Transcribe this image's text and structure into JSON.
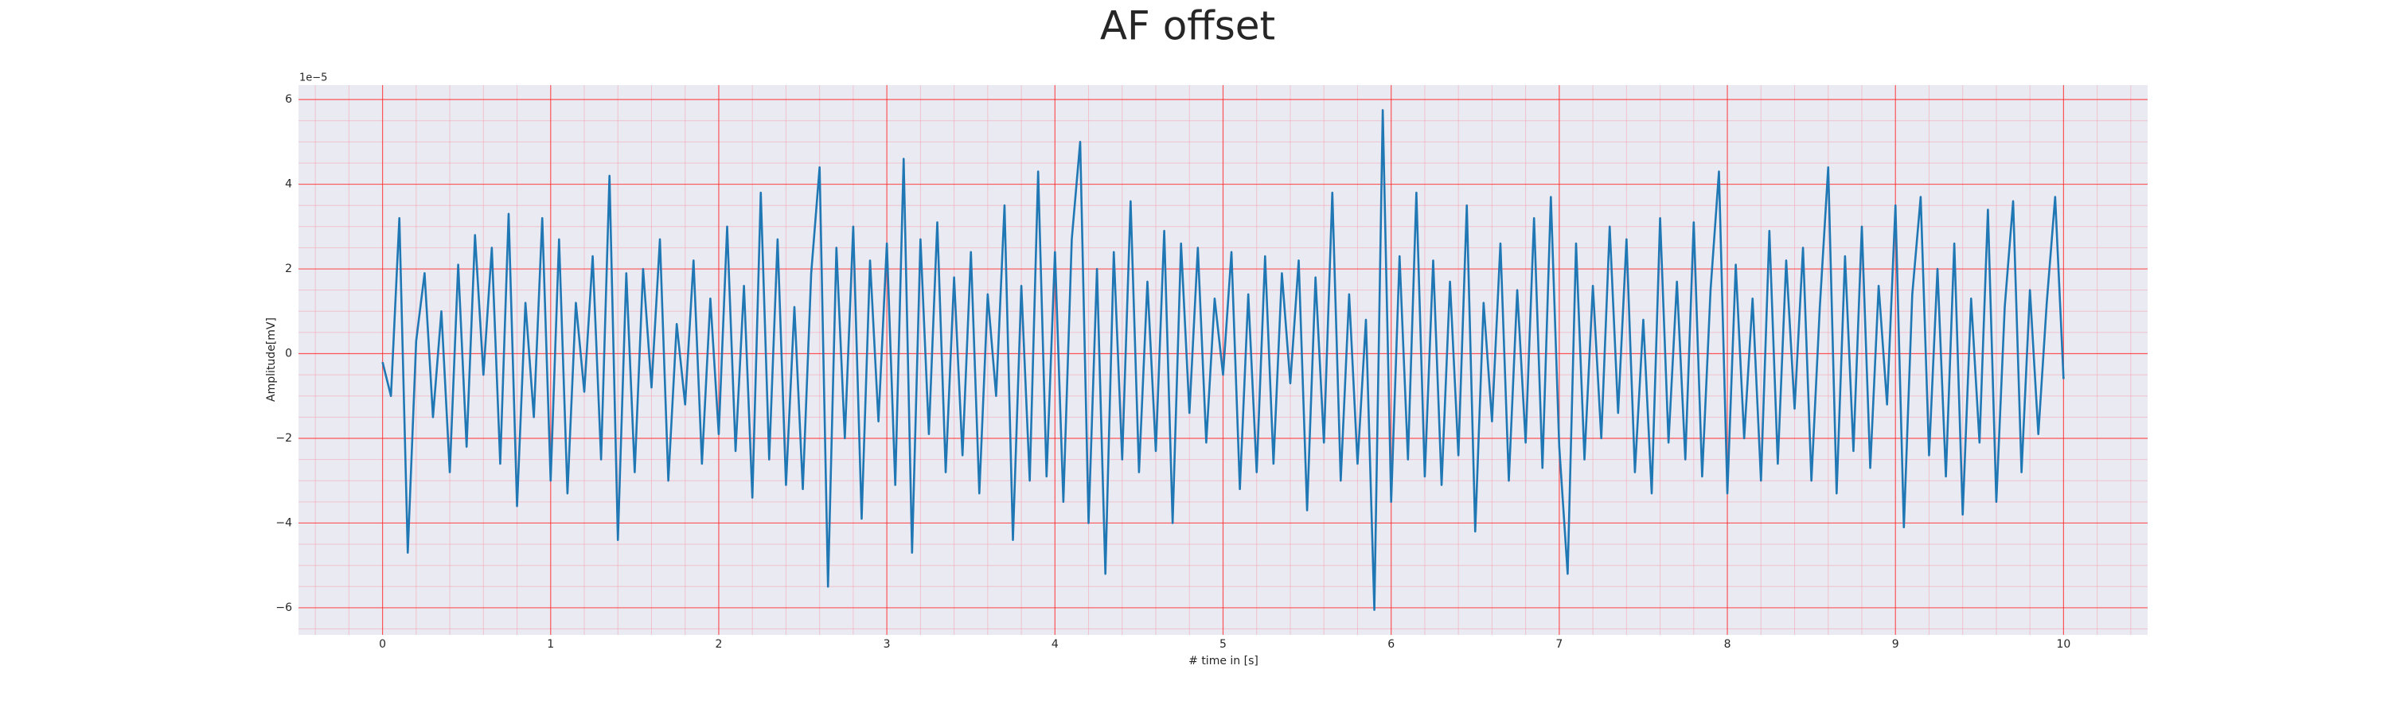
{
  "chart_data": {
    "type": "line",
    "title": "AF offset",
    "xlabel": "# time in [s]",
    "ylabel": "Amplitude[mV]",
    "y_offset_label": "1e−5",
    "color": "#1f77b4",
    "grid": true,
    "minor_grid": true,
    "xlim": [
      -0.5,
      10.5
    ],
    "xticks": [
      0,
      1,
      2,
      3,
      4,
      5,
      6,
      7,
      8,
      9,
      10
    ],
    "ylim": [
      -6.64,
      6.34
    ],
    "yticks": [
      {
        "value": -6,
        "label": "−6"
      },
      {
        "value": -4,
        "label": "−4"
      },
      {
        "value": -2,
        "label": "−2"
      },
      0,
      2,
      4,
      6
    ],
    "xminorticks": [
      -0.4,
      -0.2,
      0.2,
      0.4,
      0.6,
      0.8,
      1.2,
      1.4,
      1.6,
      1.8,
      2.2,
      2.4,
      2.6,
      2.8,
      3.2,
      3.4,
      3.6,
      3.8,
      4.2,
      4.4,
      4.6,
      4.8,
      5.2,
      5.4,
      5.6,
      5.8,
      6.2,
      6.4,
      6.6,
      6.8,
      7.2,
      7.4,
      7.6,
      7.8,
      8.2,
      8.4,
      8.6,
      8.8,
      9.2,
      9.4,
      9.6,
      9.8,
      10.2,
      10.4
    ],
    "yminorticks": [
      -6.5,
      -5.5,
      -5,
      -4.5,
      -3.5,
      -3,
      -2.5,
      -1.5,
      -1,
      -0.5,
      0.5,
      1,
      1.5,
      2.5,
      3,
      3.5,
      4.5,
      5,
      5.5
    ],
    "x": [
      0,
      0.05,
      0.1,
      0.15,
      0.2,
      0.25,
      0.3,
      0.35,
      0.4,
      0.45,
      0.5,
      0.55,
      0.6,
      0.65,
      0.7,
      0.75,
      0.8,
      0.85,
      0.9,
      0.95,
      1,
      1.05,
      1.1,
      1.15,
      1.2,
      1.25,
      1.3,
      1.35,
      1.4,
      1.45,
      1.5,
      1.55,
      1.6,
      1.65,
      1.7,
      1.75,
      1.8,
      1.85,
      1.9,
      1.95,
      2,
      2.05,
      2.1,
      2.15,
      2.2,
      2.25,
      2.3,
      2.35,
      2.4,
      2.45,
      2.5,
      2.55,
      2.6,
      2.65,
      2.7,
      2.75,
      2.8,
      2.85,
      2.9,
      2.95,
      3,
      3.05,
      3.1,
      3.15,
      3.2,
      3.25,
      3.3,
      3.35,
      3.4,
      3.45,
      3.5,
      3.55,
      3.6,
      3.65,
      3.7,
      3.75,
      3.8,
      3.85,
      3.9,
      3.95,
      4,
      4.05,
      4.1,
      4.15,
      4.2,
      4.25,
      4.3,
      4.35,
      4.4,
      4.45,
      4.5,
      4.55,
      4.6,
      4.65,
      4.7,
      4.75,
      4.8,
      4.85,
      4.9,
      4.95,
      5,
      5.05,
      5.1,
      5.15,
      5.2,
      5.25,
      5.3,
      5.35,
      5.4,
      5.45,
      5.5,
      5.55,
      5.6,
      5.65,
      5.7,
      5.75,
      5.8,
      5.85,
      5.9,
      5.95,
      6,
      6.05,
      6.1,
      6.15,
      6.2,
      6.25,
      6.3,
      6.35,
      6.4,
      6.45,
      6.5,
      6.55,
      6.6,
      6.65,
      6.7,
      6.75,
      6.8,
      6.85,
      6.9,
      6.95,
      7,
      7.05,
      7.1,
      7.15,
      7.2,
      7.25,
      7.3,
      7.35,
      7.4,
      7.45,
      7.5,
      7.55,
      7.6,
      7.65,
      7.7,
      7.75,
      7.8,
      7.85,
      7.9,
      7.95,
      8,
      8.05,
      8.1,
      8.15,
      8.2,
      8.25,
      8.3,
      8.35,
      8.4,
      8.45,
      8.5,
      8.55,
      8.6,
      8.65,
      8.7,
      8.75,
      8.8,
      8.85,
      8.9,
      8.95,
      9,
      9.05,
      9.1,
      9.15,
      9.2,
      9.25,
      9.3,
      9.35,
      9.4,
      9.45,
      9.5,
      9.55,
      9.6,
      9.65,
      9.7,
      9.75,
      9.8,
      9.85,
      9.9,
      9.95,
      10
    ],
    "values": [
      -0.2,
      -1.0,
      3.2,
      -4.7,
      0.3,
      1.9,
      -1.5,
      1.0,
      -2.8,
      2.1,
      -2.2,
      2.8,
      -0.5,
      2.5,
      -2.6,
      3.3,
      -3.6,
      1.2,
      -1.5,
      3.2,
      -3.0,
      2.7,
      -3.3,
      1.2,
      -0.9,
      2.3,
      -2.5,
      4.2,
      -4.4,
      1.9,
      -2.8,
      2.0,
      -0.8,
      2.7,
      -3.0,
      0.7,
      -1.2,
      2.2,
      -2.6,
      1.3,
      -1.9,
      3.0,
      -2.3,
      1.6,
      -3.4,
      3.8,
      -2.5,
      2.7,
      -3.1,
      1.1,
      -3.2,
      1.9,
      4.4,
      -5.5,
      2.5,
      -2.0,
      3.0,
      -3.9,
      2.2,
      -1.6,
      2.6,
      -3.1,
      4.6,
      -4.7,
      2.7,
      -1.9,
      3.1,
      -2.8,
      1.8,
      -2.4,
      2.4,
      -3.3,
      1.4,
      -1.0,
      3.5,
      -4.4,
      1.6,
      -3.0,
      4.3,
      -2.9,
      2.4,
      -3.5,
      2.7,
      5.0,
      -4.0,
      2.0,
      -5.2,
      2.4,
      -2.5,
      3.6,
      -2.8,
      1.7,
      -2.3,
      2.9,
      -4.0,
      2.6,
      -1.4,
      2.5,
      -2.1,
      1.3,
      -0.5,
      2.4,
      -3.2,
      1.4,
      -2.8,
      2.3,
      -2.6,
      1.9,
      -0.7,
      2.2,
      -3.7,
      1.8,
      -2.1,
      3.8,
      -3.0,
      1.4,
      -2.6,
      0.8,
      -6.05,
      5.75,
      -3.5,
      2.3,
      -2.5,
      3.8,
      -2.9,
      2.2,
      -3.1,
      1.7,
      -2.4,
      3.5,
      -4.2,
      1.2,
      -1.6,
      2.6,
      -3.0,
      1.5,
      -2.1,
      3.2,
      -2.7,
      3.7,
      -2.2,
      -5.2,
      2.6,
      -2.5,
      1.6,
      -2.0,
      3.0,
      -1.4,
      2.7,
      -2.8,
      0.8,
      -3.3,
      3.2,
      -2.1,
      1.7,
      -2.5,
      3.1,
      -2.9,
      1.5,
      4.3,
      -3.3,
      2.1,
      -2.0,
      1.3,
      -3.0,
      2.9,
      -2.6,
      2.2,
      -1.3,
      2.5,
      -3.0,
      1.1,
      4.4,
      -3.3,
      2.3,
      -2.3,
      3.0,
      -2.7,
      1.6,
      -1.2,
      3.5,
      -4.1,
      1.4,
      3.7,
      -2.4,
      2.0,
      -2.9,
      2.6,
      -3.8,
      1.3,
      -2.1,
      3.4,
      -3.5,
      1.1,
      3.6,
      -2.8,
      1.5,
      -1.9,
      1.2,
      3.7,
      -0.6
    ]
  }
}
